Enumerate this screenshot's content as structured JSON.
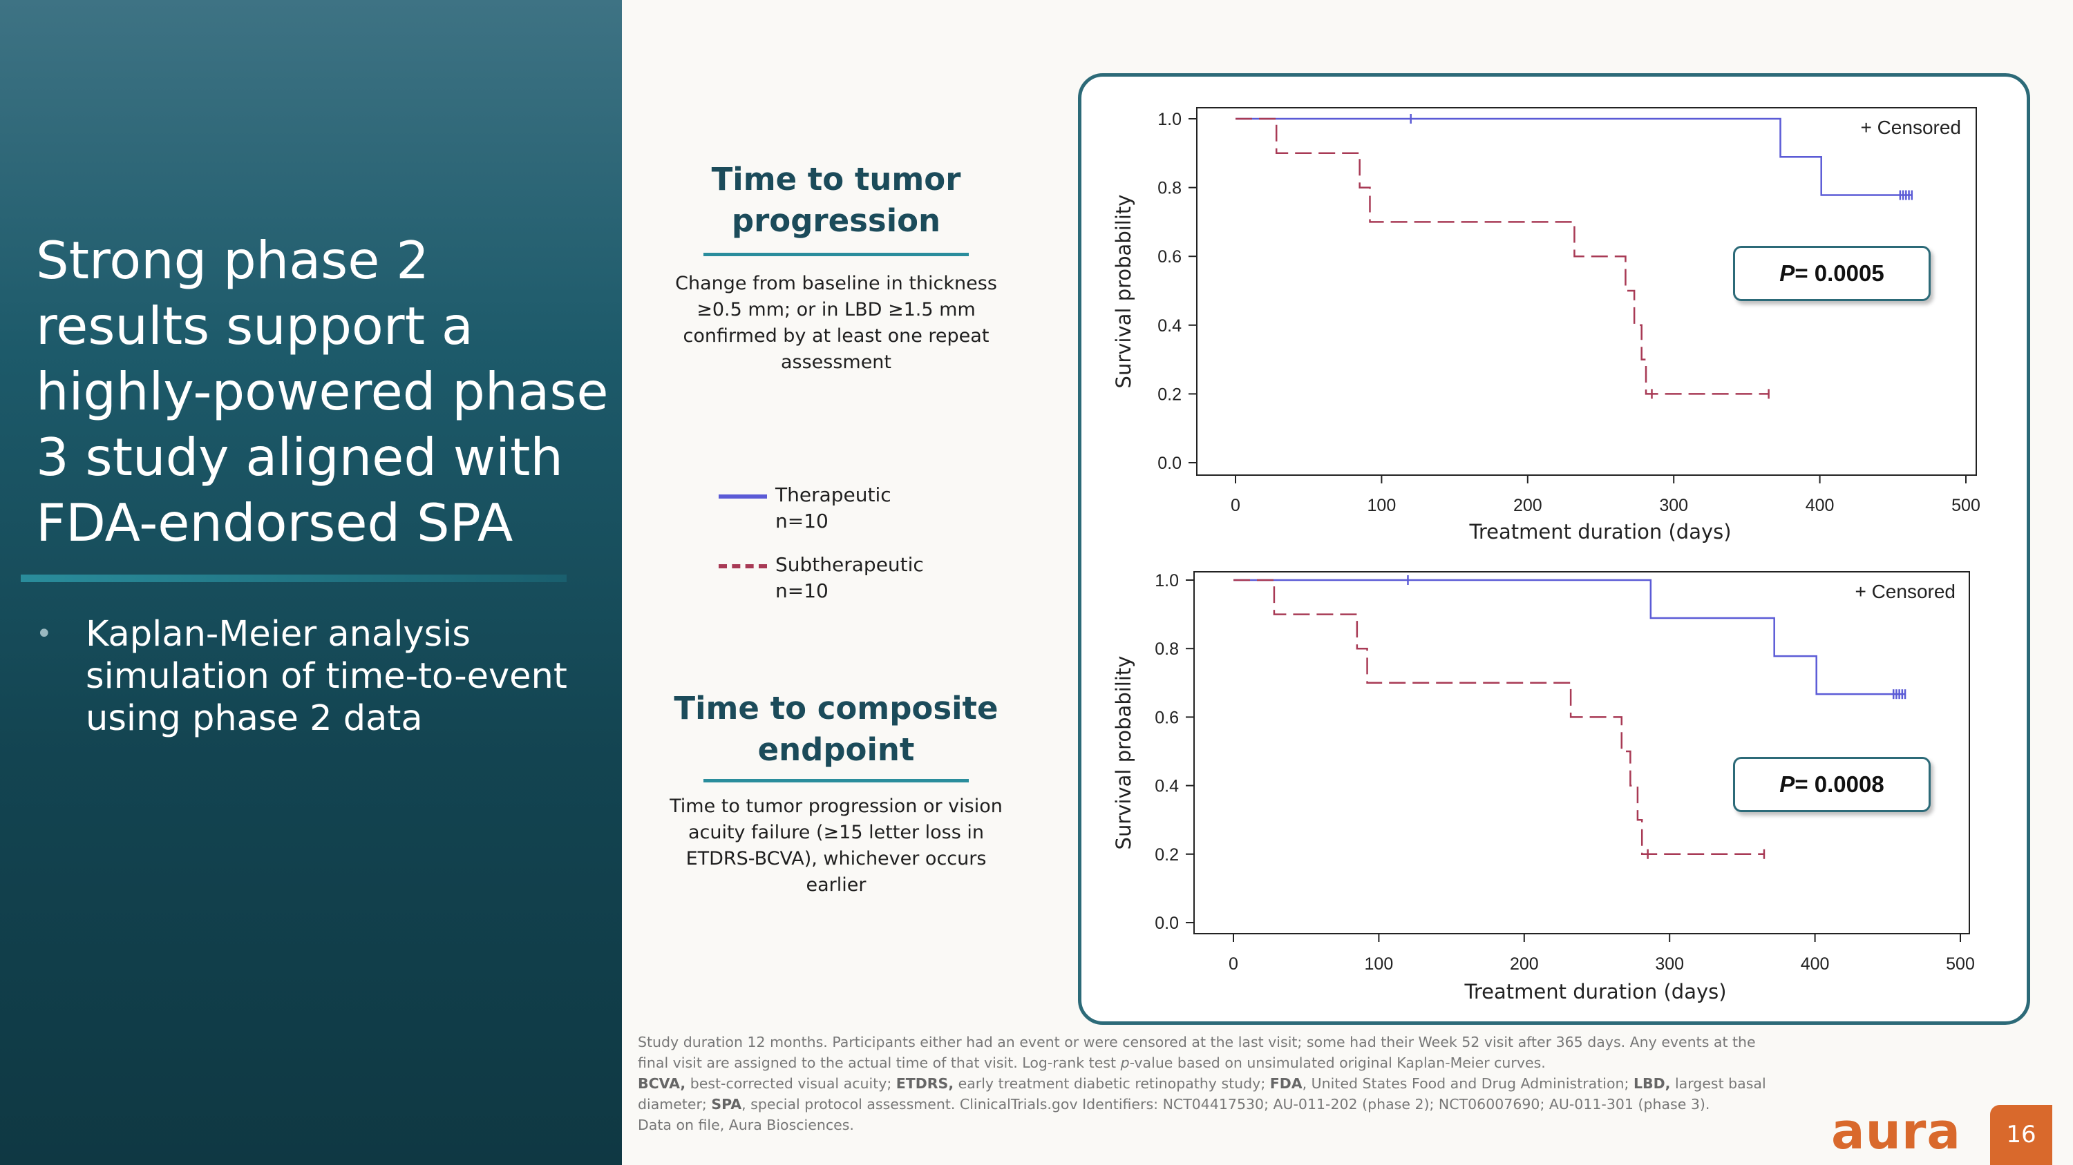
{
  "headline": "Strong phase 2 results support a highly-powered phase 3 study aligned with FDA-endorsed SPA",
  "bullet": "Kaplan-Meier analysis simulation of time-to-event using phase 2 data",
  "sections": [
    {
      "title": "Time to tumor progression",
      "desc": "Change from baseline in thickness ≥0.5 mm; or in LBD ≥1.5 mm confirmed by at least one repeat assessment"
    },
    {
      "title": "Time to composite endpoint",
      "desc": "Time to tumor progression or vision acuity failure (≥15 letter loss in ETDRS-BCVA), whichever occurs earlier"
    }
  ],
  "legend": [
    {
      "label": "Therapeutic\nn=10",
      "color": "#5b5bd6",
      "style": "solid"
    },
    {
      "label": "Subtherapeutic\nn=10",
      "color": "#a83a55",
      "style": "dashed"
    }
  ],
  "pvalues": [
    "= 0.0005",
    "= 0.0008"
  ],
  "pvalue_prefix": "P",
  "censored_label": "+ Censored",
  "chart_data": [
    {
      "type": "line",
      "subtype": "kaplan-meier step",
      "xlabel": "Treatment duration (days)",
      "ylabel": "Survival probability",
      "xlim": [
        0,
        500
      ],
      "ylim": [
        0,
        1
      ],
      "xticks": [
        0,
        100,
        200,
        300,
        400,
        500
      ],
      "yticks": [
        "0.0",
        "0.2",
        "0.4",
        "0.6",
        "0.8",
        "1.0"
      ],
      "legend_position": "top-right",
      "series": [
        {
          "name": "Therapeutic",
          "color": "#5b5bd6",
          "dashed": false,
          "x": [
            0,
            373,
            401,
            463
          ],
          "y": [
            1.0,
            0.889,
            0.778,
            0.778
          ],
          "censored_x": [
            120,
            455,
            457,
            459,
            461,
            463
          ],
          "censored_y": [
            1.0,
            0.778,
            0.778,
            0.778,
            0.778,
            0.778
          ]
        },
        {
          "name": "Subtherapeutic",
          "color": "#a83a55",
          "dashed": true,
          "x": [
            0,
            28,
            85,
            92,
            232,
            267,
            273,
            278,
            281,
            365
          ],
          "y": [
            1.0,
            0.9,
            0.8,
            0.7,
            0.6,
            0.5,
            0.4,
            0.3,
            0.2,
            0.2
          ],
          "censored_x": [
            285,
            365
          ],
          "censored_y": [
            0.2,
            0.2
          ]
        }
      ]
    },
    {
      "type": "line",
      "subtype": "kaplan-meier step",
      "xlabel": "Treatment duration (days)",
      "ylabel": "Survival probability",
      "xlim": [
        0,
        500
      ],
      "ylim": [
        0,
        1
      ],
      "xticks": [
        0,
        100,
        200,
        300,
        400,
        500
      ],
      "yticks": [
        "0.0",
        "0.2",
        "0.4",
        "0.6",
        "0.8",
        "1.0"
      ],
      "legend_position": "top-right",
      "series": [
        {
          "name": "Therapeutic",
          "color": "#5b5bd6",
          "dashed": false,
          "x": [
            0,
            287,
            372,
            401,
            462
          ],
          "y": [
            1.0,
            0.889,
            0.778,
            0.667,
            0.667
          ],
          "censored_x": [
            120,
            454,
            456,
            458,
            460,
            462
          ],
          "censored_y": [
            1.0,
            0.667,
            0.667,
            0.667,
            0.667,
            0.667
          ]
        },
        {
          "name": "Subtherapeutic",
          "color": "#a83a55",
          "dashed": true,
          "x": [
            0,
            28,
            85,
            92,
            232,
            267,
            273,
            278,
            281,
            365
          ],
          "y": [
            1.0,
            0.9,
            0.8,
            0.7,
            0.6,
            0.5,
            0.4,
            0.3,
            0.2,
            0.2
          ],
          "censored_x": [
            285,
            365
          ],
          "censored_y": [
            0.2,
            0.2
          ]
        }
      ]
    }
  ],
  "footnote": {
    "line1": "Study duration 12 months. Participants either had an event or were censored at the last visit; some had their Week 52 visit after 365 days. Any events at the",
    "line2a": "final visit are assigned to the actual time of that visit. Log-rank test ",
    "line2p": "p",
    "line2b": "-value based on unsimulated original Kaplan-Meier curves.",
    "abbr": [
      {
        "term": "BCVA,",
        "def": " best-corrected visual acuity; "
      },
      {
        "term": "ETDRS,",
        "def": " early treatment diabetic retinopathy study; "
      },
      {
        "term": "FDA",
        "def": ", United States Food and Drug Administration; "
      },
      {
        "term": "LBD,",
        "def": " largest basal"
      }
    ],
    "line4a": "diameter; ",
    "line4term": "SPA",
    "line4b": ", special protocol assessment. ClinicalTrials.gov Identifiers: NCT04417530; AU-011-202 (phase 2); NCT06007690; AU-011-301 (phase 3).",
    "line5": "Data on file, Aura Biosciences."
  },
  "logo": "aura",
  "page_number": "16"
}
